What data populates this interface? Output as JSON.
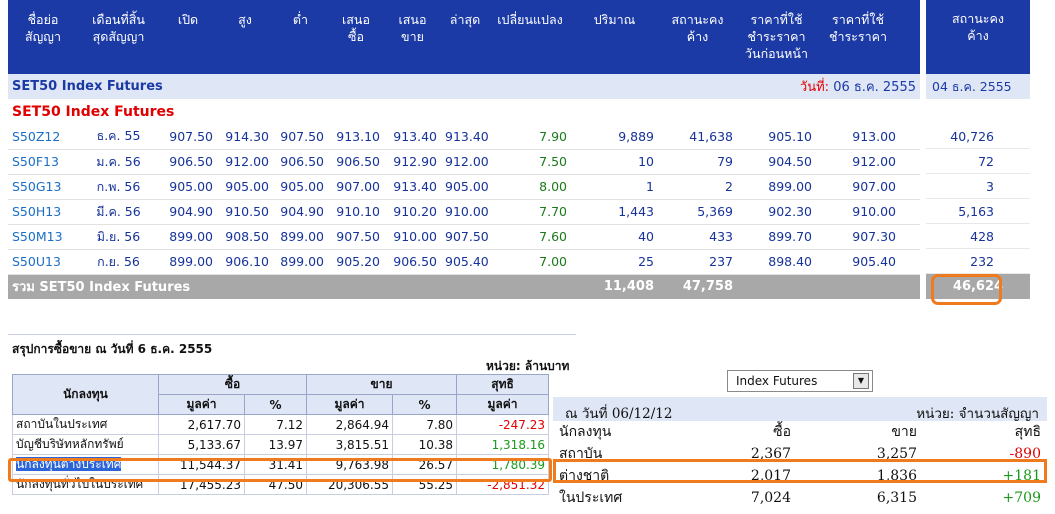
{
  "futures": {
    "headers": [
      "ชื่อย่อ\nสัญญา",
      "เดือนที่สิ้น\nสุดสัญญา",
      "เปิด",
      "สูง",
      "ต่ำ",
      "เสนอ\nซื้อ",
      "เสนอ\nขาย",
      "ล่าสุด",
      "เปลี่ยนแปลง",
      "ปริมาณ",
      "สถานะคง\nค้าง",
      "ราคาที่ใช้\nชำระราคา\nวันก่อนหน้า",
      "ราคาที่ใช้\nชำระราคา"
    ],
    "band_title": "SET50 Index Futures",
    "date_label": "วันที่:",
    "date_value": "06 ธ.ค. 2555",
    "section_title": "SET50 Index Futures",
    "rows": [
      {
        "symbol": "S50Z12",
        "month": "ธ.ค. 55",
        "open": "907.50",
        "high": "914.30",
        "low": "907.50",
        "bid": "913.10",
        "ask": "913.40",
        "last": "913.40",
        "change": "7.90",
        "volume": "9,889",
        "oi": "41,638",
        "prev_settle": "905.10",
        "settle": "913.00"
      },
      {
        "symbol": "S50F13",
        "month": "ม.ค. 56",
        "open": "906.50",
        "high": "912.00",
        "low": "906.50",
        "bid": "906.50",
        "ask": "912.90",
        "last": "912.00",
        "change": "7.50",
        "volume": "10",
        "oi": "79",
        "prev_settle": "904.50",
        "settle": "912.00"
      },
      {
        "symbol": "S50G13",
        "month": "ก.พ. 56",
        "open": "905.00",
        "high": "905.00",
        "low": "905.00",
        "bid": "907.00",
        "ask": "913.40",
        "last": "905.00",
        "change": "8.00",
        "volume": "1",
        "oi": "2",
        "prev_settle": "899.00",
        "settle": "907.00"
      },
      {
        "symbol": "S50H13",
        "month": "มี.ค. 56",
        "open": "904.90",
        "high": "910.50",
        "low": "904.90",
        "bid": "910.10",
        "ask": "910.20",
        "last": "910.00",
        "change": "7.70",
        "volume": "1,443",
        "oi": "5,369",
        "prev_settle": "902.30",
        "settle": "910.00"
      },
      {
        "symbol": "S50M13",
        "month": "มิ.ย. 56",
        "open": "899.00",
        "high": "908.50",
        "low": "899.00",
        "bid": "907.50",
        "ask": "910.00",
        "last": "907.50",
        "change": "7.60",
        "volume": "40",
        "oi": "433",
        "prev_settle": "899.70",
        "settle": "907.30"
      },
      {
        "symbol": "S50U13",
        "month": "ก.ย. 56",
        "open": "899.00",
        "high": "906.10",
        "low": "899.00",
        "bid": "905.20",
        "ask": "906.50",
        "last": "905.40",
        "change": "7.00",
        "volume": "25",
        "oi": "237",
        "prev_settle": "898.40",
        "settle": "905.40"
      }
    ],
    "total_label": "รวม SET50 Index Futures",
    "total_volume": "11,408",
    "total_oi": "47,758"
  },
  "oi_column": {
    "header": "สถานะคง\nค้าง",
    "date": "04 ธ.ค. 2555",
    "values": [
      "40,726",
      "72",
      "3",
      "5,163",
      "428",
      "232"
    ],
    "total": "46,624"
  },
  "summary_left": {
    "title": "สรุปการซื้อขาย ณ วันที่ 6 ธ.ค. 2555",
    "unit": "หน่วย: ล้านบาท",
    "h_investor": "นักลงทุน",
    "h_buy": "ซื้อ",
    "h_sell": "ขาย",
    "h_net": "สุทธิ",
    "h_value": "มูลค่า",
    "h_pct": "%",
    "rows": [
      {
        "investor": "สถาบันในประเทศ",
        "buy_val": "2,617.70",
        "buy_pct": "7.12",
        "sell_val": "2,864.94",
        "sell_pct": "7.80",
        "net": "-247.23",
        "sign": "neg"
      },
      {
        "investor": "บัญชีบริษัทหลักทรัพย์",
        "buy_val": "5,133.67",
        "buy_pct": "13.97",
        "sell_val": "3,815.51",
        "sell_pct": "10.38",
        "net": "1,318.16",
        "sign": "pos"
      },
      {
        "investor": "นักลงทุนต่างประเทศ",
        "buy_val": "11,544.37",
        "buy_pct": "31.41",
        "sell_val": "9,763.98",
        "sell_pct": "26.57",
        "net": "1,780.39",
        "sign": "pos"
      },
      {
        "investor": "นักลงทุนทั่วไปในประเทศ",
        "buy_val": "17,455.23",
        "buy_pct": "47.50",
        "sell_val": "20,306.55",
        "sell_pct": "55.25",
        "net": "-2,851.32",
        "sign": "neg"
      }
    ]
  },
  "summary_right": {
    "select_value": "Index Futures",
    "date": "ณ วันที่ 06/12/12",
    "unit": "หน่วย: จำนวนสัญญา",
    "h_investor": "นักลงทุน",
    "h_buy": "ซื้อ",
    "h_sell": "ขาย",
    "h_net": "สุทธิ",
    "rows": [
      {
        "investor": "สถาบัน",
        "buy": "2,367",
        "sell": "3,257",
        "net": "-890",
        "sign": "neg"
      },
      {
        "investor": "ต่างชาติ",
        "buy": "2,017",
        "sell": "1,836",
        "net": "+181",
        "sign": "pos"
      },
      {
        "investor": "ในประเทศ",
        "buy": "7,024",
        "sell": "6,315",
        "net": "+709",
        "sign": "pos"
      }
    ]
  },
  "colors": {
    "header_blue": "#1b3aa6",
    "band_bg": "#dfe6f5",
    "negative": "#e00000",
    "positive": "#1a9a1a",
    "highlight": "#f07a1e"
  }
}
